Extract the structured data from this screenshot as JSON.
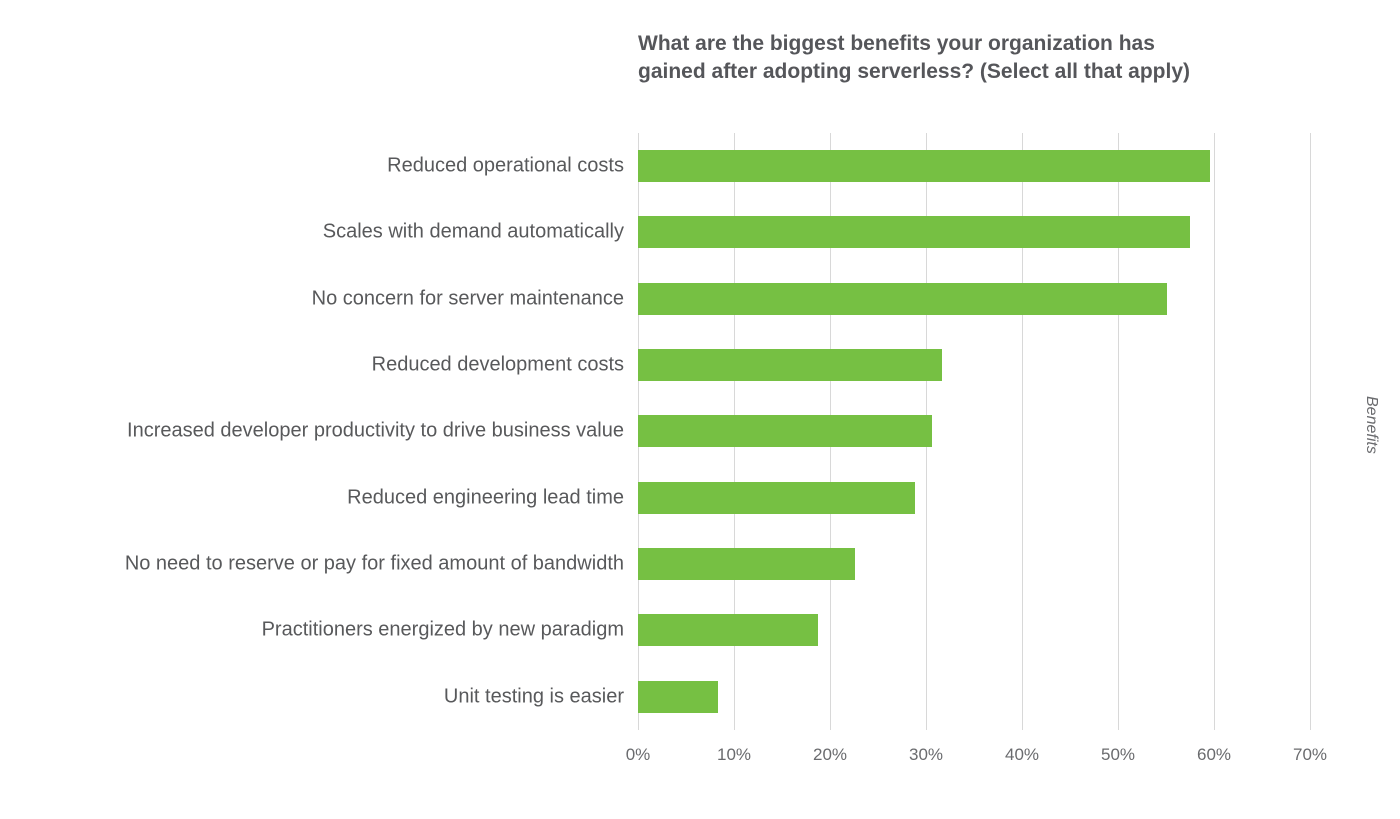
{
  "chart_data": {
    "type": "bar",
    "orientation": "horizontal",
    "title": "What are the biggest benefits your organization has\ngained after adopting serverless? (Select all that apply)",
    "categories": [
      "Reduced operational costs",
      "Scales with demand automatically",
      "No concern for server maintenance",
      "Reduced development costs",
      "Increased developer productivity to drive business value",
      "Reduced engineering lead time",
      "No need to reserve or pay for fixed amount of bandwidth",
      "Practitioners energized by new paradigm",
      "Unit testing is easier"
    ],
    "values": [
      59.6,
      57.5,
      55.1,
      31.7,
      30.6,
      28.9,
      22.6,
      18.8,
      8.3
    ],
    "x_tick_values": [
      0,
      10,
      20,
      30,
      40,
      50,
      60,
      70
    ],
    "x_tick_labels": [
      "0%",
      "10%",
      "20%",
      "30%",
      "40%",
      "50%",
      "60%",
      "70%"
    ],
    "xlim": [
      0,
      70
    ],
    "ylabel_right": "Benefits",
    "bar_color": "#76c043",
    "gridline_color": "#d8d8d8",
    "text_color": "#58595b",
    "grid": true,
    "legend": "none"
  }
}
